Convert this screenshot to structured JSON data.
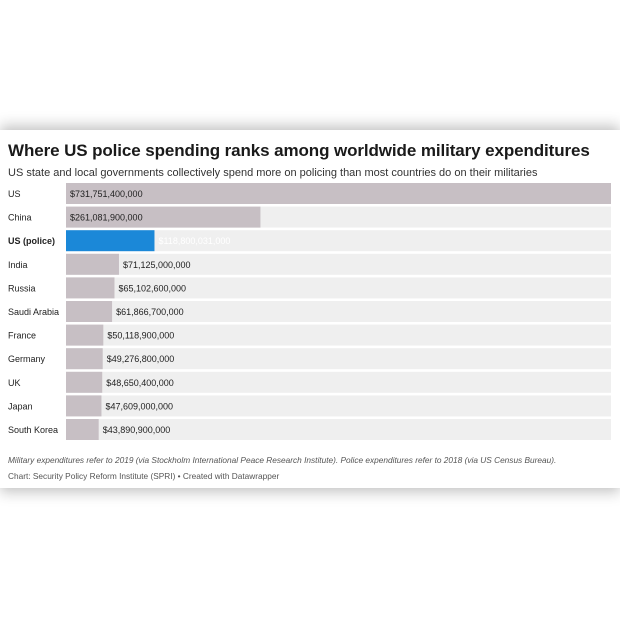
{
  "chart_data": {
    "type": "bar",
    "orientation": "horizontal",
    "title": "Where US police spending ranks among worldwide military expenditures",
    "subtitle": "US state and local governments collectively spend more on policing than most countries do on their militaries",
    "categories": [
      "US",
      "China",
      "US (police)",
      "India",
      "Russia",
      "Saudi Arabia",
      "France",
      "Germany",
      "UK",
      "Japan",
      "South Korea"
    ],
    "values": [
      731751400000,
      261081900000,
      118800031000,
      71125000000,
      65102600000,
      61866700000,
      50118900000,
      49276800000,
      48650400000,
      47609000000,
      43890900000
    ],
    "value_labels": [
      "$731,751,400,000",
      "$261,081,900,000",
      "$118,800,031,000",
      "$71,125,000,000",
      "$65,102,600,000",
      "$61,866,700,000",
      "$50,118,900,000",
      "$49,276,800,000",
      "$48,650,400,000",
      "$47,609,000,000",
      "$43,890,900,000"
    ],
    "highlight_index": 2,
    "xlim": [
      0,
      731751400000
    ],
    "colors": {
      "bar": "#c7bfc4",
      "track": "#efefef",
      "highlight": "#1b88d8"
    }
  },
  "notes": "Military expenditures refer to 2019 (via Stockholm International Peace Research Institute). Police expenditures refer to 2018 (via US Census Bureau).",
  "source": {
    "chart_credit": "Chart: Security Policy Reform Institute (SPRI)",
    "separator": " • ",
    "tool_credit": "Created with Datawrapper"
  }
}
